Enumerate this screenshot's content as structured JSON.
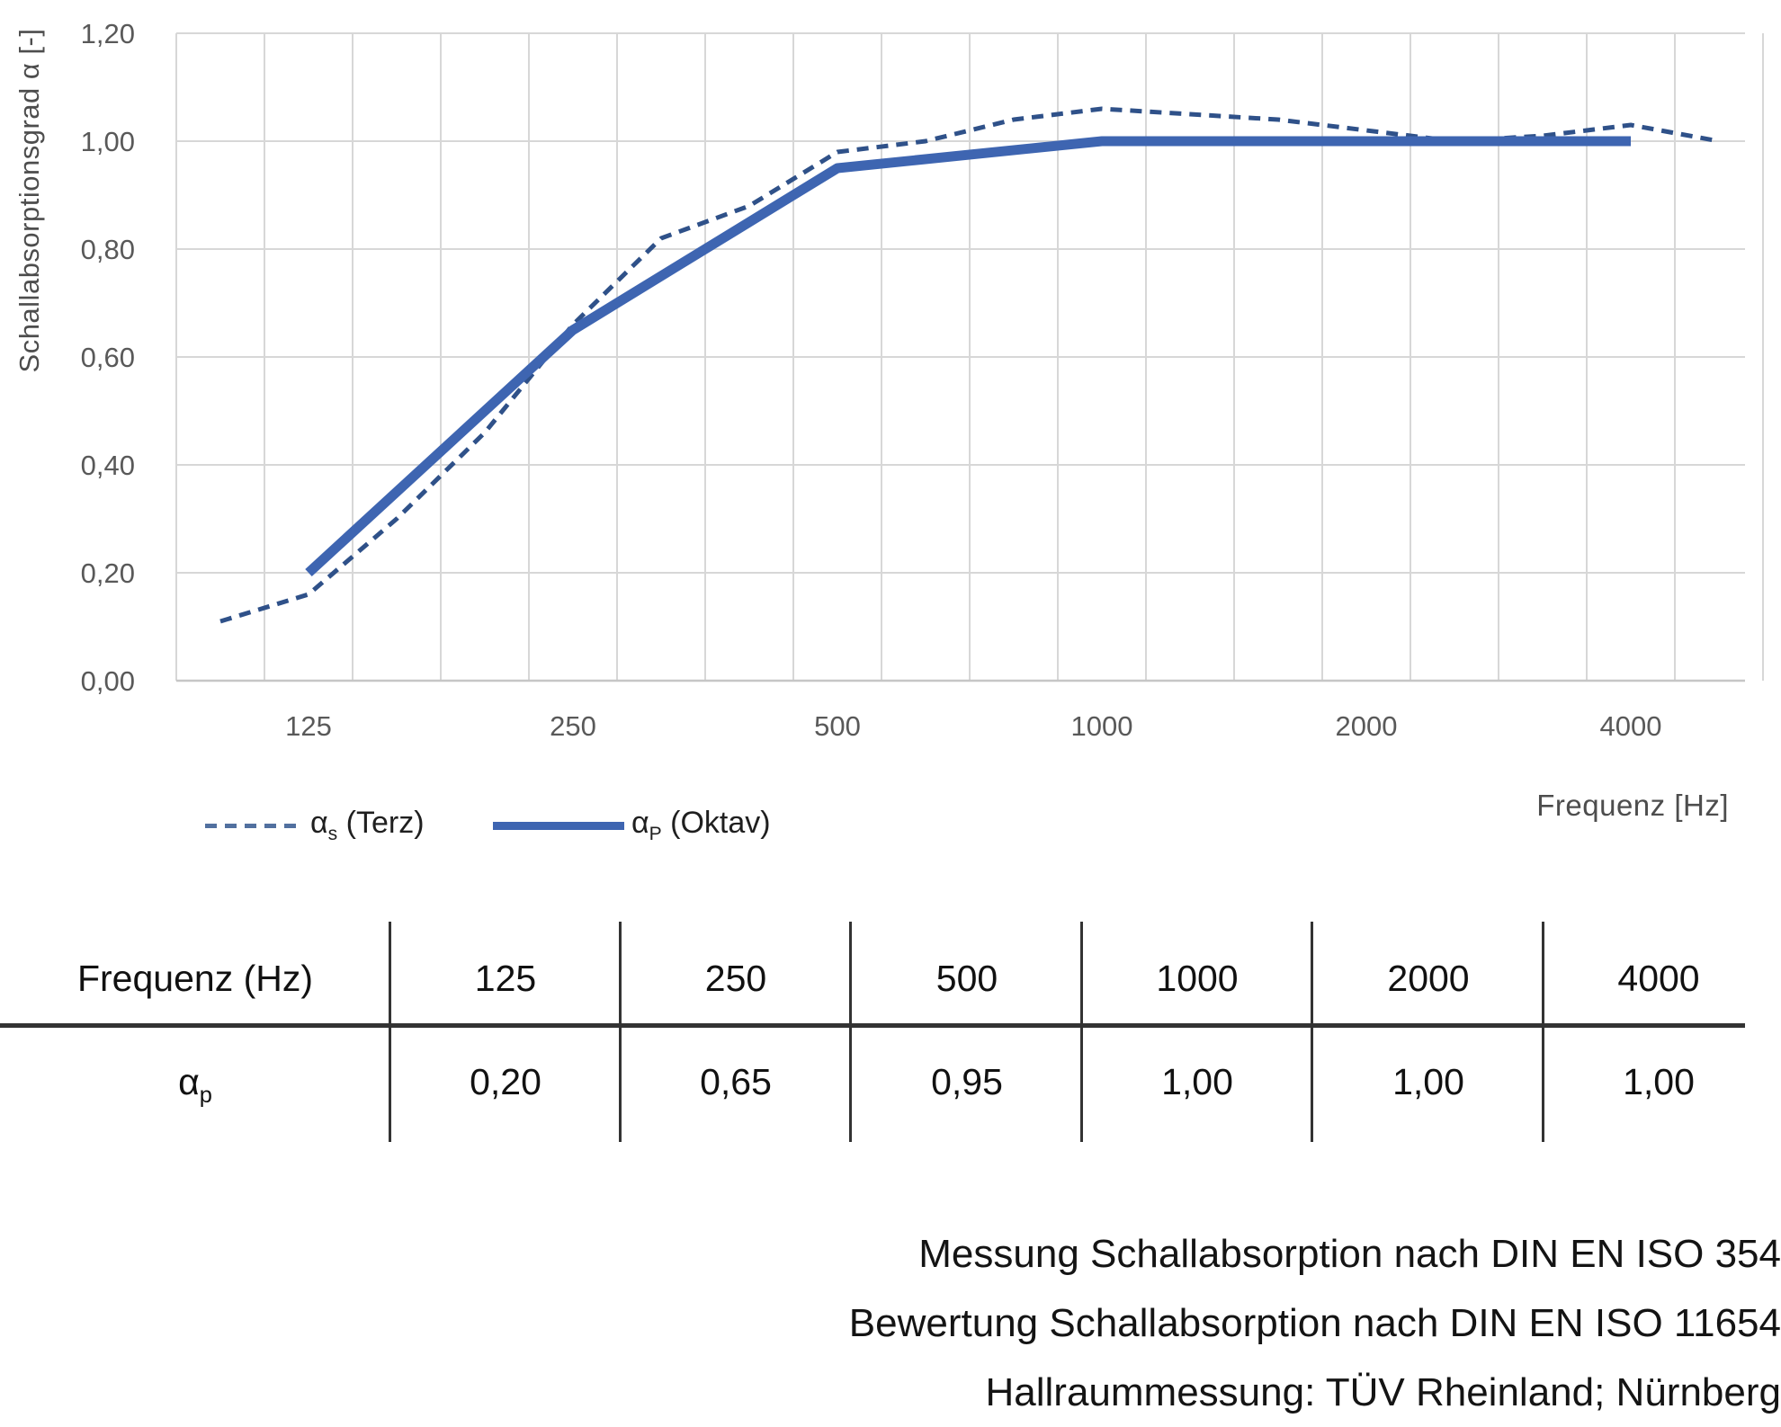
{
  "chart_data": {
    "type": "line",
    "title": "",
    "ylabel": "Schallabsorptionsgrad α [-]",
    "xlabel": "Frequenz [Hz]",
    "ylim": [
      0,
      1.2
    ],
    "grid": true,
    "legend_position": "bottom-left",
    "y_ticks_top_to_bottom": [
      "1,20",
      "1,00",
      "0,80",
      "0,60",
      "0,40",
      "0,20",
      "0,00"
    ],
    "x_categories": [
      100,
      125,
      160,
      200,
      250,
      315,
      400,
      500,
      630,
      800,
      1000,
      1250,
      1600,
      2000,
      2500,
      3150,
      4000,
      5000
    ],
    "x_tick_labels": [
      "125",
      "250",
      "500",
      "1000",
      "2000",
      "4000"
    ],
    "series": [
      {
        "name": "αs (Terz)",
        "line_style": "dashed",
        "color": "#2F5189",
        "x": [
          100,
          125,
          160,
          200,
          250,
          315,
          400,
          500,
          630,
          800,
          1000,
          1250,
          1600,
          2000,
          2500,
          3150,
          4000,
          5000
        ],
        "values": [
          0.11,
          0.16,
          0.3,
          0.46,
          0.66,
          0.82,
          0.88,
          0.98,
          1.0,
          1.04,
          1.06,
          1.05,
          1.04,
          1.02,
          1.0,
          1.01,
          1.03,
          1.0
        ]
      },
      {
        "name": "αP (Oktav)",
        "line_style": "solid",
        "color": "#3E65B1",
        "x": [
          125,
          250,
          500,
          1000,
          2000,
          4000
        ],
        "values": [
          0.2,
          0.65,
          0.95,
          1.0,
          1.0,
          1.0
        ]
      }
    ]
  },
  "legend": {
    "items": [
      {
        "symbol": "α",
        "sub": "s",
        "rest": " (Terz)"
      },
      {
        "symbol": "α",
        "sub": "P",
        "rest": " (Oktav)"
      }
    ]
  },
  "table": {
    "row_header": "Frequenz (Hz)",
    "value_row_symbol": "α",
    "value_row_sub": "p",
    "frequencies": [
      "125",
      "250",
      "500",
      "1000",
      "2000",
      "4000"
    ],
    "values": [
      "0,20",
      "0,65",
      "0,95",
      "1,00",
      "1,00",
      "1,00"
    ]
  },
  "footer": {
    "lines": [
      "Messung Schallabsorption nach DIN EN ISO 354",
      "Bewertung Schallabsorption nach DIN EN ISO 11654",
      "Hallraummessung: TÜV Rheinland; Nürnberg"
    ]
  },
  "colors": {
    "gridline": "#D7D7D7",
    "axis_line": "#C6C6C6",
    "tick_text": "#595959",
    "table_line": "#333333"
  }
}
